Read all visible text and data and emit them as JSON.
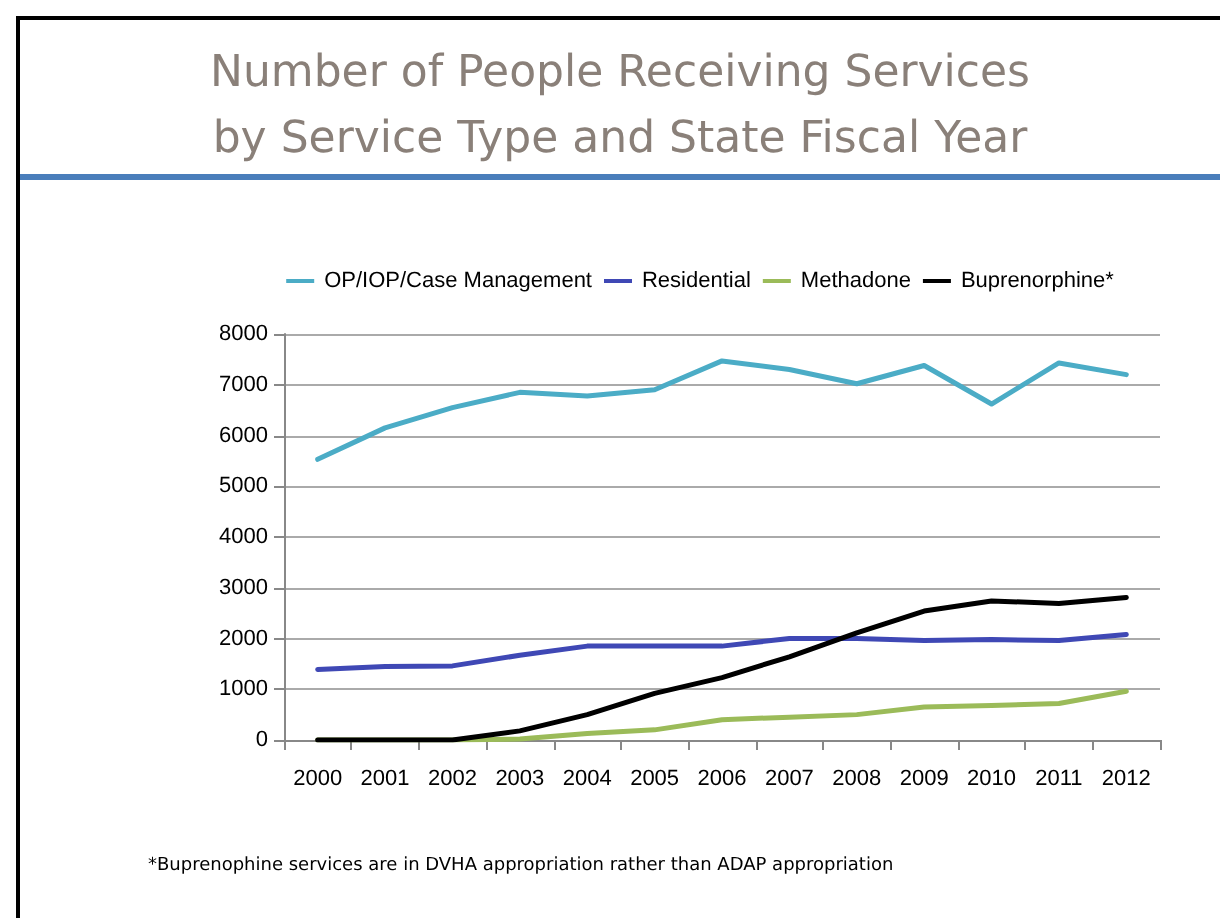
{
  "chart_data": {
    "type": "line",
    "title": "Number of People Receiving Services\nby Service Type and State Fiscal Year",
    "categories": [
      "2000",
      "2001",
      "2002",
      "2003",
      "2004",
      "2005",
      "2006",
      "2007",
      "2008",
      "2009",
      "2010",
      "2011",
      "2012"
    ],
    "series": [
      {
        "name": "OP/IOP/Case Management",
        "color": "#4bacc6",
        "values": [
          5530,
          6150,
          6550,
          6850,
          6780,
          6900,
          7470,
          7300,
          7020,
          7380,
          6620,
          7430,
          7200
        ]
      },
      {
        "name": "Residential",
        "color": "#3f48b5",
        "values": [
          1390,
          1450,
          1460,
          1670,
          1850,
          1850,
          1850,
          2000,
          2000,
          1960,
          1980,
          1960,
          2080
        ]
      },
      {
        "name": "Methadone",
        "color": "#9bbb59",
        "values": [
          0,
          0,
          0,
          20,
          130,
          200,
          400,
          450,
          500,
          650,
          680,
          720,
          960
        ]
      },
      {
        "name": "Buprenorphine*",
        "color": "#000000",
        "values": [
          0,
          0,
          0,
          180,
          500,
          920,
          1230,
          1640,
          2110,
          2540,
          2740,
          2690,
          2810
        ]
      }
    ],
    "ylim": [
      0,
      8000
    ],
    "yticks": [
      0,
      1000,
      2000,
      3000,
      4000,
      5000,
      6000,
      7000,
      8000
    ],
    "grid": "y",
    "legend": "top",
    "marker": "none",
    "line_style": "solid",
    "annotations": [
      "*Buprenophine services are in DVHA appropriation rather than ADAP appropriation"
    ]
  }
}
